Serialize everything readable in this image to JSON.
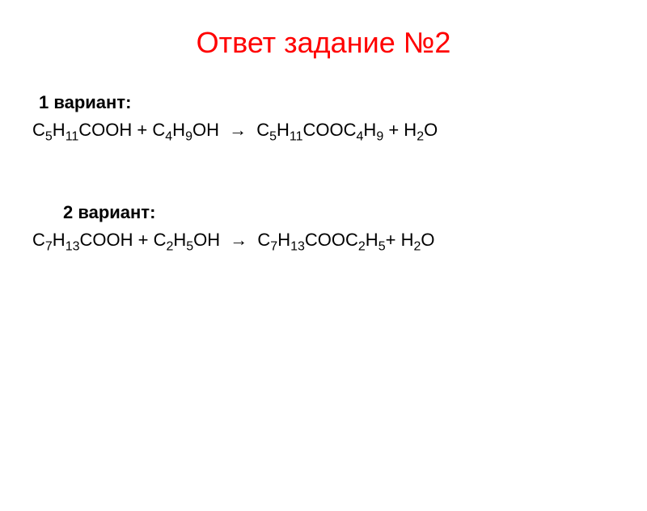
{
  "title": "Ответ задание №2",
  "variant1": {
    "label": "1 вариант:",
    "reactant1_base": "C",
    "reactant1_sub1": "5",
    "reactant1_mid": "H",
    "reactant1_sub2": "11",
    "reactant1_end": "COOH",
    "plus1": " + ",
    "reactant2_base": "C",
    "reactant2_sub1": "4",
    "reactant2_mid": "H",
    "reactant2_sub2": "9",
    "reactant2_end": "OH",
    "arrow": "→",
    "product1_base": "C",
    "product1_sub1": "5",
    "product1_mid": "H",
    "product1_sub2": "11",
    "product1_mid2": "COOC",
    "product1_sub3": "4",
    "product1_mid3": "H",
    "product1_sub4": "9",
    "plus2": " + ",
    "product2_base": "H",
    "product2_sub": "2",
    "product2_end": "O"
  },
  "variant2": {
    "label": "2 вариант:",
    "reactant1_base": "C",
    "reactant1_sub1": "7",
    "reactant1_mid": "H",
    "reactant1_sub2": "13",
    "reactant1_end": "COOH",
    "plus1": " + ",
    "reactant2_base": "C",
    "reactant2_sub1": "2",
    "reactant2_mid": "H",
    "reactant2_sub2": "5",
    "reactant2_end": "OH",
    "arrow": "→",
    "product1_base": "C",
    "product1_sub1": "7",
    "product1_mid": "H",
    "product1_sub2": "13",
    "product1_mid2": "COOC",
    "product1_sub3": "2",
    "product1_mid3": "H",
    "product1_sub4": "5",
    "plus2": "+ ",
    "product2_base": "H",
    "product2_sub": "2",
    "product2_end": "O"
  },
  "colors": {
    "title_color": "#ff0000",
    "text_color": "#000000",
    "background": "#ffffff"
  },
  "typography": {
    "title_fontsize": 36,
    "label_fontsize": 22,
    "equation_fontsize": 22,
    "sub_fontsize": 16
  }
}
